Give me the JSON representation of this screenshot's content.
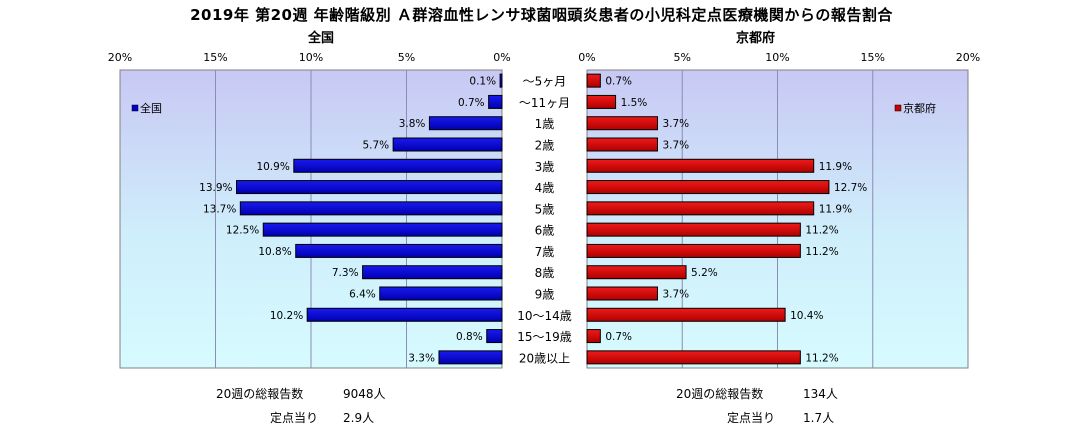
{
  "title": "2019年 第20週 年齢階級別 Ａ群溶血性レンサ球菌咽頭炎患者の小児科定点医療機関からの報告割合",
  "chart_data": {
    "type": "bar",
    "orientation": "horizontal-butterfly",
    "categories": [
      "～5ヶ月",
      "～11ヶ月",
      "1歳",
      "2歳",
      "3歳",
      "4歳",
      "5歳",
      "6歳",
      "7歳",
      "8歳",
      "9歳",
      "10～14歳",
      "15～19歳",
      "20歳以上"
    ],
    "series": [
      {
        "name": "全国",
        "color": "#0000cc",
        "values": [
          0.1,
          0.7,
          3.8,
          5.7,
          10.9,
          13.9,
          13.7,
          12.5,
          10.8,
          7.3,
          6.4,
          10.2,
          0.8,
          3.3
        ]
      },
      {
        "name": "京都府",
        "color": "#cc0000",
        "values": [
          0.7,
          1.5,
          3.7,
          3.7,
          11.9,
          12.7,
          11.9,
          11.2,
          11.2,
          5.2,
          3.7,
          10.4,
          0.7,
          11.2
        ]
      }
    ],
    "left_panel": {
      "title": "全国",
      "ticks": [
        "20%",
        "15%",
        "10%",
        "5%",
        "0%"
      ],
      "xlim": [
        20,
        0
      ]
    },
    "right_panel": {
      "title": "京都府",
      "ticks": [
        "0%",
        "5%",
        "10%",
        "15%",
        "20%"
      ],
      "xlim": [
        0,
        20
      ]
    },
    "unit": "%",
    "legend": "inside plot area, left panel at top-left, right panel at top-right",
    "grid": true
  },
  "footer": {
    "left": {
      "total_label": "20週の総報告数",
      "total_value": "9048人",
      "per_label": "定点当り",
      "per_value": "2.9人"
    },
    "right": {
      "total_label": "20週の総報告数",
      "total_value": "134人",
      "per_label": "定点当り",
      "per_value": "1.7人"
    }
  }
}
